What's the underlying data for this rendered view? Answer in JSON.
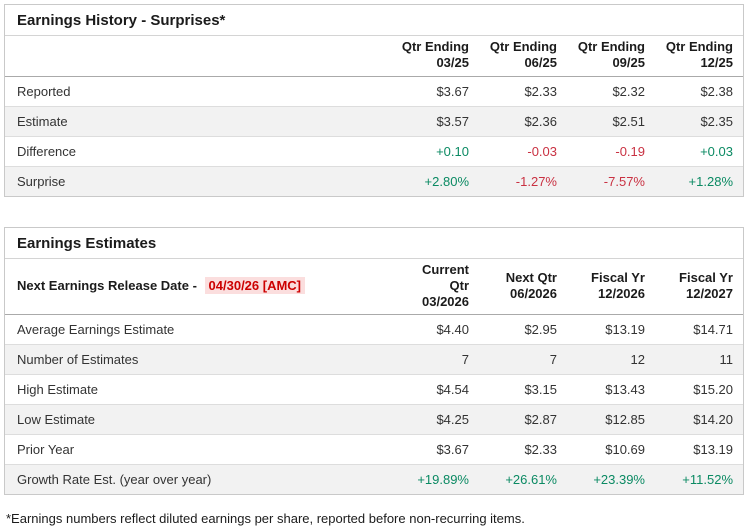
{
  "colors": {
    "positive": "#0b8a63",
    "negative": "#c93142",
    "date_text": "#cc0000",
    "date_background": "#fbdede"
  },
  "earnings_history": {
    "title": "Earnings History - Surprises*",
    "columns": [
      {
        "line1": "Qtr Ending",
        "line2": "03/25"
      },
      {
        "line1": "Qtr Ending",
        "line2": "06/25"
      },
      {
        "line1": "Qtr Ending",
        "line2": "09/25"
      },
      {
        "line1": "Qtr Ending",
        "line2": "12/25"
      }
    ],
    "rows": [
      {
        "label": "Reported",
        "values": [
          "$3.67",
          "$2.33",
          "$2.32",
          "$2.38"
        ]
      },
      {
        "label": "Estimate",
        "values": [
          "$3.57",
          "$2.36",
          "$2.51",
          "$2.35"
        ]
      },
      {
        "label": "Difference",
        "values": [
          "+0.10",
          "-0.03",
          "-0.19",
          "+0.03"
        ],
        "tones": [
          "pos",
          "neg",
          "neg",
          "pos"
        ]
      },
      {
        "label": "Surprise",
        "values": [
          "+2.80%",
          "-1.27%",
          "-7.57%",
          "+1.28%"
        ],
        "tones": [
          "pos",
          "neg",
          "neg",
          "pos"
        ]
      }
    ]
  },
  "earnings_estimates": {
    "title": "Earnings Estimates",
    "release_label": "Next Earnings Release Date -",
    "release_date": "04/30/26 [AMC]",
    "columns": [
      {
        "line1": "Current Qtr",
        "line2": "03/2026"
      },
      {
        "line1": "Next Qtr",
        "line2": "06/2026"
      },
      {
        "line1": "Fiscal Yr",
        "line2": "12/2026"
      },
      {
        "line1": "Fiscal Yr",
        "line2": "12/2027"
      }
    ],
    "rows": [
      {
        "label": "Average Earnings Estimate",
        "values": [
          "$4.40",
          "$2.95",
          "$13.19",
          "$14.71"
        ]
      },
      {
        "label": "Number of Estimates",
        "values": [
          "7",
          "7",
          "12",
          "11"
        ]
      },
      {
        "label": "High Estimate",
        "values": [
          "$4.54",
          "$3.15",
          "$13.43",
          "$15.20"
        ]
      },
      {
        "label": "Low Estimate",
        "values": [
          "$4.25",
          "$2.87",
          "$12.85",
          "$14.20"
        ]
      },
      {
        "label": "Prior Year",
        "values": [
          "$3.67",
          "$2.33",
          "$10.69",
          "$13.19"
        ]
      },
      {
        "label": "Growth Rate Est. (year over year)",
        "values": [
          "+19.89%",
          "+26.61%",
          "+23.39%",
          "+11.52%"
        ],
        "tones": [
          "pos",
          "pos",
          "pos",
          "pos"
        ]
      }
    ]
  },
  "footnote": "*Earnings numbers reflect diluted earnings per share, reported before non-recurring items."
}
